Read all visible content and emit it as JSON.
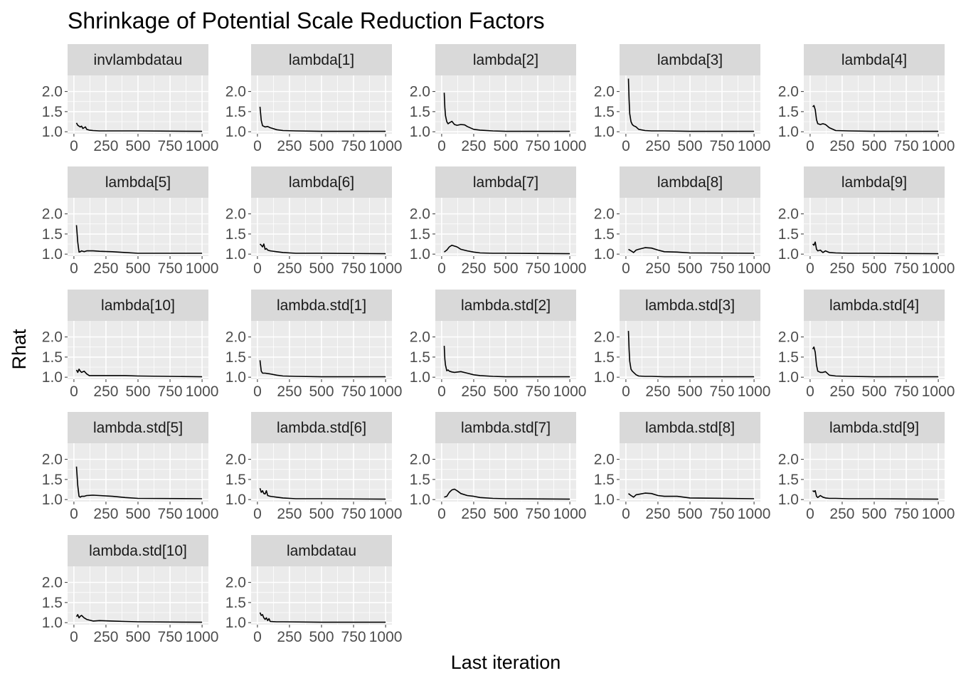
{
  "chart_data": {
    "type": "line",
    "title": "Shrinkage of Potential Scale Reduction Factors",
    "xlabel": "Last iteration",
    "ylabel": "Rhat",
    "xlim": [
      0,
      1000
    ],
    "ylim": [
      0.95,
      2.4
    ],
    "x_ticks": [
      "0",
      "250",
      "500",
      "750",
      "1000"
    ],
    "y_ticks": [
      "1.0",
      "1.5",
      "2.0"
    ],
    "grid": true,
    "colors": {
      "panel_bg": "#ebebeb",
      "strip_bg": "#d9d9d9",
      "grid": "#ffffff",
      "line": "#000000"
    },
    "panels": [
      {
        "name": "invlambdatau",
        "x": [
          20,
          30,
          40,
          50,
          60,
          70,
          80,
          90,
          100,
          120,
          150,
          200,
          300,
          400,
          500,
          1000
        ],
        "y": [
          1.22,
          1.16,
          1.14,
          1.12,
          1.14,
          1.08,
          1.1,
          1.12,
          1.06,
          1.04,
          1.03,
          1.02,
          1.02,
          1.02,
          1.02,
          1.01
        ]
      },
      {
        "name": "lambda[1]",
        "x": [
          20,
          30,
          40,
          60,
          80,
          100,
          150,
          200,
          300,
          500,
          1000
        ],
        "y": [
          1.62,
          1.28,
          1.15,
          1.12,
          1.13,
          1.1,
          1.05,
          1.03,
          1.02,
          1.01,
          1.01
        ]
      },
      {
        "name": "lambda[2]",
        "x": [
          20,
          25,
          30,
          40,
          50,
          60,
          80,
          100,
          120,
          150,
          180,
          200,
          250,
          300,
          400,
          500,
          1000
        ],
        "y": [
          1.97,
          1.6,
          1.4,
          1.25,
          1.2,
          1.22,
          1.26,
          1.18,
          1.16,
          1.18,
          1.17,
          1.13,
          1.06,
          1.04,
          1.02,
          1.01,
          1.01
        ]
      },
      {
        "name": "lambda[3]",
        "x": [
          20,
          25,
          30,
          40,
          50,
          60,
          80,
          100,
          150,
          200,
          300,
          500,
          1000
        ],
        "y": [
          2.32,
          1.8,
          1.45,
          1.25,
          1.18,
          1.15,
          1.12,
          1.06,
          1.03,
          1.02,
          1.02,
          1.01,
          1.01
        ]
      },
      {
        "name": "lambda[4]",
        "x": [
          20,
          30,
          40,
          50,
          60,
          80,
          100,
          120,
          150,
          200,
          300,
          500,
          1000
        ],
        "y": [
          1.62,
          1.65,
          1.55,
          1.3,
          1.2,
          1.18,
          1.2,
          1.18,
          1.1,
          1.03,
          1.02,
          1.01,
          1.01
        ]
      },
      {
        "name": "lambda[5]",
        "x": [
          20,
          30,
          40,
          50,
          60,
          80,
          100,
          150,
          200,
          300,
          400,
          500,
          1000
        ],
        "y": [
          1.72,
          1.3,
          1.05,
          1.06,
          1.08,
          1.06,
          1.08,
          1.08,
          1.07,
          1.06,
          1.04,
          1.02,
          1.02
        ]
      },
      {
        "name": "lambda[6]",
        "x": [
          20,
          30,
          40,
          50,
          60,
          70,
          80,
          100,
          150,
          200,
          300,
          500,
          1000
        ],
        "y": [
          1.25,
          1.22,
          1.18,
          1.25,
          1.12,
          1.14,
          1.1,
          1.08,
          1.06,
          1.04,
          1.02,
          1.02,
          1.01
        ]
      },
      {
        "name": "lambda[7]",
        "x": [
          20,
          40,
          60,
          80,
          100,
          120,
          150,
          200,
          250,
          300,
          400,
          500,
          1000
        ],
        "y": [
          1.05,
          1.1,
          1.18,
          1.22,
          1.2,
          1.18,
          1.12,
          1.08,
          1.05,
          1.03,
          1.02,
          1.02,
          1.01
        ]
      },
      {
        "name": "lambda[8]",
        "x": [
          20,
          40,
          60,
          80,
          100,
          150,
          200,
          250,
          300,
          400,
          500,
          1000
        ],
        "y": [
          1.12,
          1.08,
          1.04,
          1.1,
          1.12,
          1.16,
          1.15,
          1.1,
          1.06,
          1.05,
          1.03,
          1.02
        ]
      },
      {
        "name": "lambda[9]",
        "x": [
          20,
          30,
          40,
          50,
          60,
          80,
          100,
          120,
          150,
          200,
          300,
          500,
          1000
        ],
        "y": [
          1.25,
          1.22,
          1.3,
          1.12,
          1.08,
          1.1,
          1.04,
          1.08,
          1.04,
          1.03,
          1.02,
          1.02,
          1.01
        ]
      },
      {
        "name": "lambda[10]",
        "x": [
          20,
          30,
          40,
          50,
          60,
          80,
          100,
          120,
          150,
          200,
          300,
          400,
          500,
          1000
        ],
        "y": [
          1.18,
          1.12,
          1.2,
          1.15,
          1.12,
          1.15,
          1.08,
          1.04,
          1.04,
          1.04,
          1.04,
          1.04,
          1.03,
          1.01
        ]
      },
      {
        "name": "lambda.std[1]",
        "x": [
          20,
          30,
          40,
          60,
          80,
          100,
          150,
          200,
          300,
          500,
          1000
        ],
        "y": [
          1.42,
          1.15,
          1.1,
          1.1,
          1.09,
          1.08,
          1.05,
          1.03,
          1.02,
          1.01,
          1.01
        ]
      },
      {
        "name": "lambda.std[2]",
        "x": [
          20,
          25,
          30,
          40,
          50,
          60,
          80,
          100,
          150,
          200,
          250,
          300,
          400,
          500,
          1000
        ],
        "y": [
          1.78,
          1.45,
          1.3,
          1.16,
          1.18,
          1.15,
          1.13,
          1.12,
          1.14,
          1.1,
          1.06,
          1.04,
          1.02,
          1.01,
          1.01
        ]
      },
      {
        "name": "lambda.std[3]",
        "x": [
          20,
          25,
          30,
          40,
          50,
          60,
          80,
          100,
          150,
          200,
          300,
          500,
          1000
        ],
        "y": [
          2.15,
          1.7,
          1.4,
          1.2,
          1.15,
          1.12,
          1.06,
          1.03,
          1.02,
          1.02,
          1.01,
          1.01,
          1.01
        ]
      },
      {
        "name": "lambda.std[4]",
        "x": [
          20,
          30,
          40,
          50,
          60,
          80,
          100,
          120,
          150,
          200,
          300,
          500,
          1000
        ],
        "y": [
          1.7,
          1.75,
          1.62,
          1.3,
          1.15,
          1.12,
          1.12,
          1.14,
          1.05,
          1.03,
          1.02,
          1.01,
          1.01
        ]
      },
      {
        "name": "lambda.std[5]",
        "x": [
          20,
          30,
          40,
          50,
          60,
          80,
          100,
          150,
          200,
          300,
          400,
          500,
          1000
        ],
        "y": [
          1.82,
          1.35,
          1.08,
          1.06,
          1.08,
          1.08,
          1.1,
          1.11,
          1.1,
          1.08,
          1.05,
          1.03,
          1.02
        ]
      },
      {
        "name": "lambda.std[6]",
        "x": [
          20,
          30,
          40,
          50,
          60,
          70,
          80,
          100,
          150,
          200,
          300,
          500,
          1000
        ],
        "y": [
          1.28,
          1.18,
          1.22,
          1.15,
          1.14,
          1.22,
          1.1,
          1.08,
          1.06,
          1.04,
          1.02,
          1.02,
          1.01
        ]
      },
      {
        "name": "lambda.std[7]",
        "x": [
          20,
          40,
          60,
          80,
          100,
          120,
          150,
          200,
          250,
          300,
          400,
          500,
          1000
        ],
        "y": [
          1.06,
          1.08,
          1.18,
          1.24,
          1.26,
          1.22,
          1.15,
          1.1,
          1.08,
          1.05,
          1.03,
          1.02,
          1.01
        ]
      },
      {
        "name": "lambda.std[8]",
        "x": [
          20,
          40,
          60,
          80,
          100,
          150,
          200,
          250,
          300,
          400,
          500,
          1000
        ],
        "y": [
          1.15,
          1.1,
          1.06,
          1.12,
          1.13,
          1.16,
          1.15,
          1.1,
          1.08,
          1.08,
          1.04,
          1.02
        ]
      },
      {
        "name": "lambda.std[9]",
        "x": [
          20,
          30,
          40,
          50,
          60,
          80,
          100,
          120,
          150,
          200,
          300,
          500,
          1000
        ],
        "y": [
          1.22,
          1.2,
          1.22,
          1.08,
          1.05,
          1.1,
          1.06,
          1.04,
          1.03,
          1.03,
          1.02,
          1.02,
          1.01
        ]
      },
      {
        "name": "lambda.std[10]",
        "x": [
          20,
          30,
          40,
          50,
          60,
          80,
          100,
          150,
          200,
          300,
          400,
          500,
          1000
        ],
        "y": [
          1.15,
          1.2,
          1.12,
          1.16,
          1.18,
          1.12,
          1.08,
          1.04,
          1.05,
          1.04,
          1.03,
          1.02,
          1.01
        ]
      },
      {
        "name": "lambdatau",
        "x": [
          20,
          30,
          40,
          50,
          60,
          70,
          80,
          90,
          100,
          150,
          200,
          500,
          1000
        ],
        "y": [
          1.25,
          1.18,
          1.2,
          1.12,
          1.08,
          1.12,
          1.05,
          1.1,
          1.03,
          1.02,
          1.02,
          1.01,
          1.01
        ]
      }
    ]
  }
}
